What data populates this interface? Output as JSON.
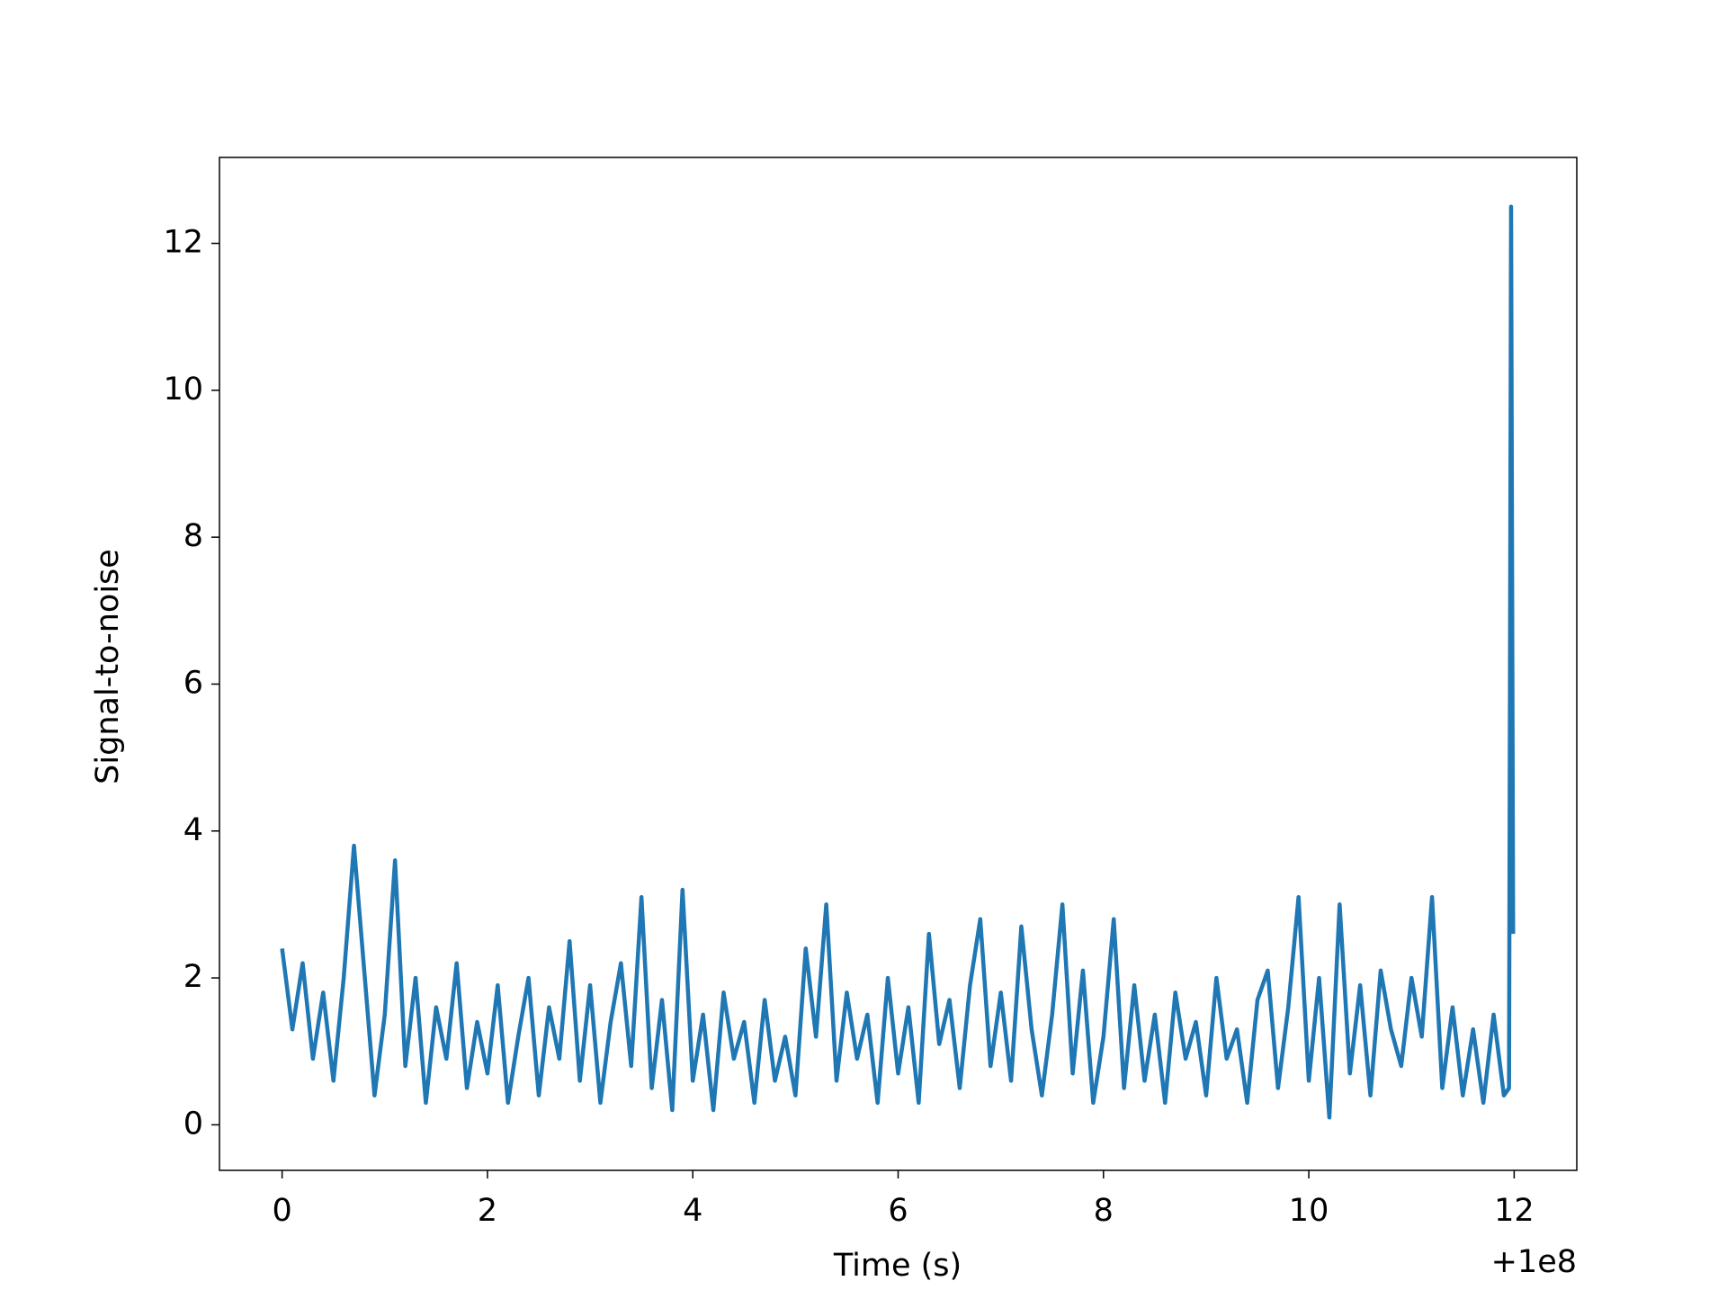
{
  "chart_data": {
    "type": "line",
    "x_label": "Time (s)",
    "y_label": "Signal-to-noise",
    "x_offset": "+1e8",
    "xlim": [
      -0.61,
      12.61
    ],
    "ylim": [
      -0.62,
      13.17
    ],
    "xticks": [
      0,
      2,
      4,
      6,
      8,
      10,
      12
    ],
    "yticks": [
      0,
      2,
      4,
      6,
      8,
      10,
      12
    ],
    "grid": false,
    "x": [
      0,
      0.1,
      0.2,
      0.3,
      0.4,
      0.5,
      0.6,
      0.7,
      0.8,
      0.9,
      1.0,
      1.1,
      1.2,
      1.3,
      1.4,
      1.5,
      1.6,
      1.7,
      1.8,
      1.9,
      2.0,
      2.1,
      2.2,
      2.3,
      2.4,
      2.5,
      2.6,
      2.7,
      2.8,
      2.9,
      3.0,
      3.1,
      3.2,
      3.3,
      3.4,
      3.5,
      3.6,
      3.7,
      3.8,
      3.9,
      4.0,
      4.1,
      4.2,
      4.3,
      4.4,
      4.5,
      4.6,
      4.7,
      4.8,
      4.9,
      5.0,
      5.1,
      5.2,
      5.3,
      5.4,
      5.5,
      5.6,
      5.7,
      5.8,
      5.9,
      6.0,
      6.1,
      6.2,
      6.3,
      6.4,
      6.5,
      6.6,
      6.7,
      6.8,
      6.9,
      7.0,
      7.1,
      7.2,
      7.3,
      7.4,
      7.5,
      7.6,
      7.7,
      7.8,
      7.9,
      8.0,
      8.1,
      8.2,
      8.3,
      8.4,
      8.5,
      8.6,
      8.7,
      8.8,
      8.9,
      9.0,
      9.1,
      9.2,
      9.3,
      9.4,
      9.5,
      9.6,
      9.7,
      9.8,
      9.9,
      10.0,
      10.1,
      10.2,
      10.3,
      10.4,
      10.5,
      10.6,
      10.7,
      10.8,
      10.9,
      11.0,
      11.1,
      11.2,
      11.3,
      11.4,
      11.5,
      11.6,
      11.7,
      11.8,
      11.9,
      11.95,
      11.97,
      11.99
    ],
    "series": [
      {
        "name": "Signal-to-noise",
        "color": "#1f77b4",
        "values": [
          2.4,
          1.3,
          2.2,
          0.9,
          1.8,
          0.6,
          2.0,
          3.8,
          2.1,
          0.4,
          1.5,
          3.6,
          0.8,
          2.0,
          0.3,
          1.6,
          0.9,
          2.2,
          0.5,
          1.4,
          0.7,
          1.9,
          0.3,
          1.2,
          2.0,
          0.4,
          1.6,
          0.9,
          2.5,
          0.6,
          1.9,
          0.3,
          1.4,
          2.2,
          0.8,
          3.1,
          0.5,
          1.7,
          0.2,
          3.2,
          0.6,
          1.5,
          0.2,
          1.8,
          0.9,
          1.4,
          0.3,
          1.7,
          0.6,
          1.2,
          0.4,
          2.4,
          1.2,
          3.0,
          0.6,
          1.8,
          0.9,
          1.5,
          0.3,
          2.0,
          0.7,
          1.6,
          0.3,
          2.6,
          1.1,
          1.7,
          0.5,
          1.9,
          2.8,
          0.8,
          1.8,
          0.6,
          2.7,
          1.3,
          0.4,
          1.5,
          3.0,
          0.7,
          2.1,
          0.3,
          1.2,
          2.8,
          0.5,
          1.9,
          0.6,
          1.5,
          0.3,
          1.8,
          0.9,
          1.4,
          0.4,
          2.0,
          0.9,
          1.3,
          0.3,
          1.7,
          2.1,
          0.5,
          1.6,
          3.1,
          0.6,
          2.0,
          0.1,
          3.0,
          0.7,
          1.9,
          0.4,
          2.1,
          1.3,
          0.8,
          2.0,
          1.2,
          3.1,
          0.5,
          1.6,
          0.4,
          1.3,
          0.3,
          1.5,
          0.4,
          0.5,
          12.5,
          2.6
        ]
      }
    ]
  }
}
